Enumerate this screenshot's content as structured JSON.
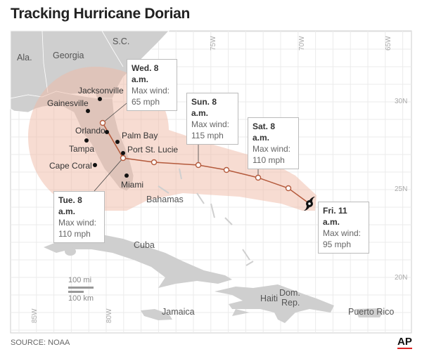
{
  "title": "Tracking Hurricane Dorian",
  "source": "SOURCE: NOAA",
  "logo": "AP",
  "colors": {
    "land": "#cfcfcf",
    "cone": "#f0b9a6",
    "track": "#b45a3c",
    "grid": "#e6e6e6"
  },
  "regions": {
    "ala": "Ala.",
    "georgia": "Georgia",
    "sc": "S.C.",
    "bahamas": "Bahamas",
    "cuba": "Cuba",
    "jamaica": "Jamaica",
    "haiti": "Haiti",
    "dom_rep_1": "Dom.",
    "dom_rep_2": "Rep.",
    "puerto_rico": "Puerto Rico"
  },
  "cities": [
    "Jacksonville",
    "Gainesville",
    "Orlando",
    "Palm Bay",
    "Port St. Lucie",
    "Tampa",
    "Cape Coral",
    "Miami"
  ],
  "grid": {
    "lon": [
      "85W",
      "80W",
      "75W",
      "70W",
      "65W"
    ],
    "lat": [
      "30N",
      "25N",
      "20N"
    ]
  },
  "scale": {
    "mi": "100 mi",
    "km": "100 km"
  },
  "forecast": [
    {
      "time": "Fri. 11 a.m.",
      "label": "Max wind:",
      "wind": "95 mph"
    },
    {
      "time": "Sat. 8 a.m.",
      "label": "Max wind:",
      "wind": "110 mph"
    },
    {
      "time": "Sun. 8 a.m.",
      "label": "Max wind:",
      "wind": "115 mph"
    },
    {
      "time": "Tue. 8 a.m.",
      "label": "Max wind:",
      "wind": "110 mph"
    },
    {
      "time": "Wed. 8 a.m.",
      "label": "Max wind:",
      "wind": "65 mph"
    }
  ]
}
